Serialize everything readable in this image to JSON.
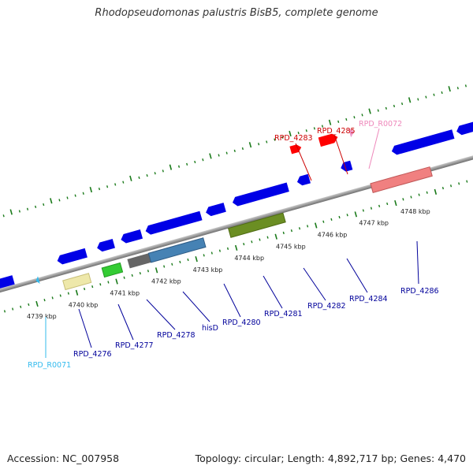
{
  "title": "Rhodopseudomonas palustris BisB5, complete genome",
  "footer": {
    "accession": "Accession: NC_007958",
    "summary": "Topology: circular; Length: 4,892,717 bp; Genes: 4,470"
  },
  "colors": {
    "backbone": "#8c8c8c",
    "tick": "#1a7a1a",
    "gene": "#0000e6",
    "label_blue": "#00009a",
    "label_red": "#cc0000",
    "label_pink": "#ee88bb",
    "label_cyan": "#33bbee"
  },
  "ticks": [
    {
      "label": "4739 kbp"
    },
    {
      "label": "4740 kbp"
    },
    {
      "label": "4741 kbp"
    },
    {
      "label": "4742 kbp"
    },
    {
      "label": "4743 kbp"
    },
    {
      "label": "4744 kbp"
    },
    {
      "label": "4745 kbp"
    },
    {
      "label": "4746 kbp"
    },
    {
      "label": "4747 kbp"
    },
    {
      "label": "4748 kbp"
    }
  ],
  "gene_labels": [
    {
      "text": "RPD_4283",
      "color": "#cc0000"
    },
    {
      "text": "RPD_4285",
      "color": "#cc0000"
    },
    {
      "text": "RPD_R0072",
      "color": "#ee88bb"
    },
    {
      "text": "RPD_R0071",
      "color": "#33bbee"
    },
    {
      "text": "RPD_4276",
      "color": "#00009a"
    },
    {
      "text": "RPD_4277",
      "color": "#00009a"
    },
    {
      "text": "RPD_4278",
      "color": "#00009a"
    },
    {
      "text": "hisD",
      "color": "#00009a"
    },
    {
      "text": "RPD_4280",
      "color": "#00009a"
    },
    {
      "text": "RPD_4281",
      "color": "#00009a"
    },
    {
      "text": "RPD_4282",
      "color": "#00009a"
    },
    {
      "text": "RPD_4284",
      "color": "#00009a"
    },
    {
      "text": "RPD_4286",
      "color": "#00009a"
    }
  ]
}
